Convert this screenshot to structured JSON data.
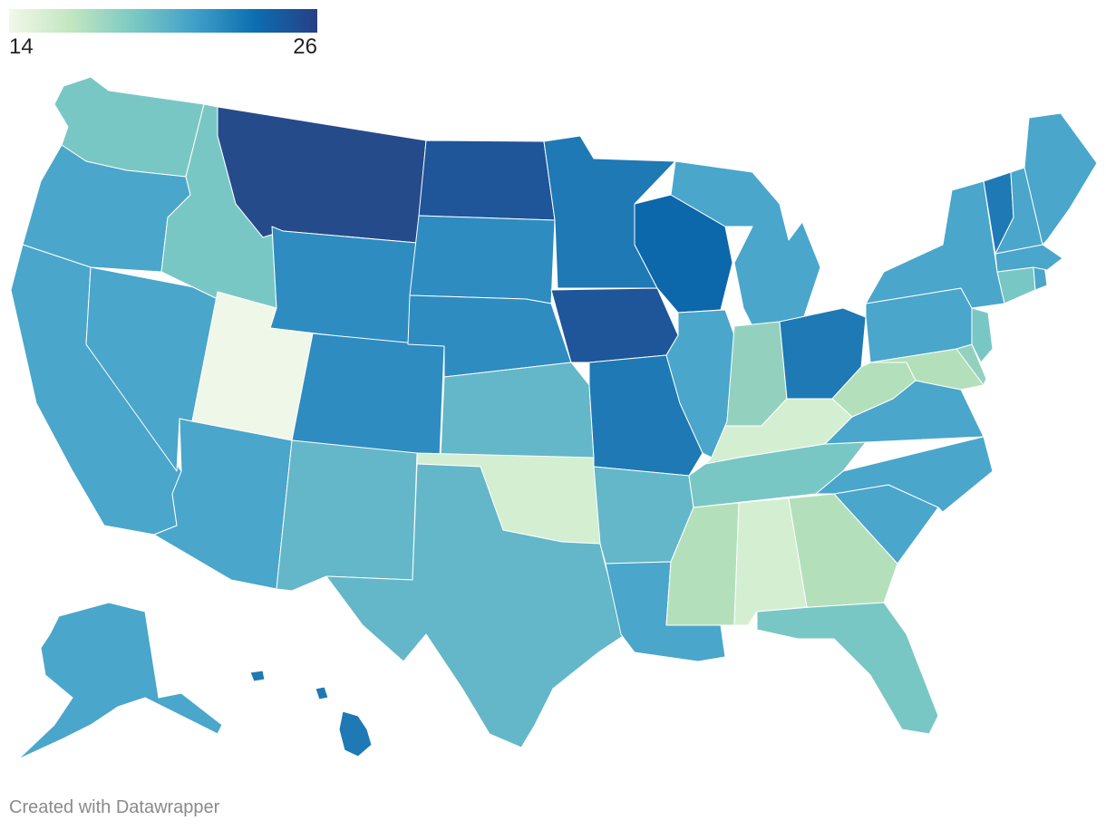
{
  "legend": {
    "min_label": "14",
    "max_label": "26",
    "min": 14,
    "max": 26,
    "gradient": [
      "#f2f8e9",
      "#c2e6c0",
      "#7ccac3",
      "#41a0c9",
      "#0b6eb0",
      "#273f86"
    ]
  },
  "credit": "Created with Datawrapper",
  "colors": {
    "stroke": "#ffffff",
    "shades": {
      "utah": "#eff7e8",
      "pale_green": "#d4eed2",
      "light_green": "#b3e0bb",
      "mint": "#93d1be",
      "teal_light": "#79c7c4",
      "teal": "#63b7c8",
      "mid_blue": "#4aa6cb",
      "blue": "#2e8cc0",
      "strong_blue": "#1e79b5",
      "deep_blue": "#0d67ab",
      "navy": "#1f5599",
      "dark_navy": "#264b8b"
    }
  },
  "states": [
    {
      "id": "WA",
      "shade": "teal_light"
    },
    {
      "id": "OR",
      "shade": "mid_blue"
    },
    {
      "id": "CA",
      "shade": "mid_blue"
    },
    {
      "id": "NV",
      "shade": "mid_blue"
    },
    {
      "id": "ID",
      "shade": "teal_light"
    },
    {
      "id": "MT",
      "shade": "dark_navy"
    },
    {
      "id": "WY",
      "shade": "blue"
    },
    {
      "id": "UT",
      "shade": "utah"
    },
    {
      "id": "AZ",
      "shade": "mid_blue"
    },
    {
      "id": "CO",
      "shade": "blue"
    },
    {
      "id": "NM",
      "shade": "teal"
    },
    {
      "id": "ND",
      "shade": "navy"
    },
    {
      "id": "SD",
      "shade": "blue"
    },
    {
      "id": "NE",
      "shade": "blue"
    },
    {
      "id": "KS",
      "shade": "teal"
    },
    {
      "id": "OK",
      "shade": "pale_green"
    },
    {
      "id": "TX",
      "shade": "teal"
    },
    {
      "id": "MN",
      "shade": "strong_blue"
    },
    {
      "id": "IA",
      "shade": "navy"
    },
    {
      "id": "MO",
      "shade": "strong_blue"
    },
    {
      "id": "AR",
      "shade": "teal"
    },
    {
      "id": "LA",
      "shade": "mid_blue"
    },
    {
      "id": "WI",
      "shade": "deep_blue"
    },
    {
      "id": "IL",
      "shade": "mid_blue"
    },
    {
      "id": "MI",
      "shade": "mid_blue"
    },
    {
      "id": "IN",
      "shade": "mint"
    },
    {
      "id": "OH",
      "shade": "strong_blue"
    },
    {
      "id": "KY",
      "shade": "pale_green"
    },
    {
      "id": "TN",
      "shade": "teal_light"
    },
    {
      "id": "MS",
      "shade": "light_green"
    },
    {
      "id": "AL",
      "shade": "pale_green"
    },
    {
      "id": "GA",
      "shade": "light_green"
    },
    {
      "id": "FL",
      "shade": "teal_light"
    },
    {
      "id": "SC",
      "shade": "mid_blue"
    },
    {
      "id": "NC",
      "shade": "mid_blue"
    },
    {
      "id": "VA",
      "shade": "mid_blue"
    },
    {
      "id": "WV",
      "shade": "light_green"
    },
    {
      "id": "MD",
      "shade": "light_green"
    },
    {
      "id": "DE",
      "shade": "mint"
    },
    {
      "id": "NJ",
      "shade": "teal_light"
    },
    {
      "id": "PA",
      "shade": "mid_blue"
    },
    {
      "id": "NY",
      "shade": "mid_blue"
    },
    {
      "id": "CT",
      "shade": "teal_light"
    },
    {
      "id": "RI",
      "shade": "mid_blue"
    },
    {
      "id": "MA",
      "shade": "mid_blue"
    },
    {
      "id": "VT",
      "shade": "strong_blue"
    },
    {
      "id": "NH",
      "shade": "mid_blue"
    },
    {
      "id": "ME",
      "shade": "mid_blue"
    },
    {
      "id": "AK",
      "shade": "mid_blue"
    },
    {
      "id": "HI",
      "shade": "strong_blue"
    }
  ]
}
